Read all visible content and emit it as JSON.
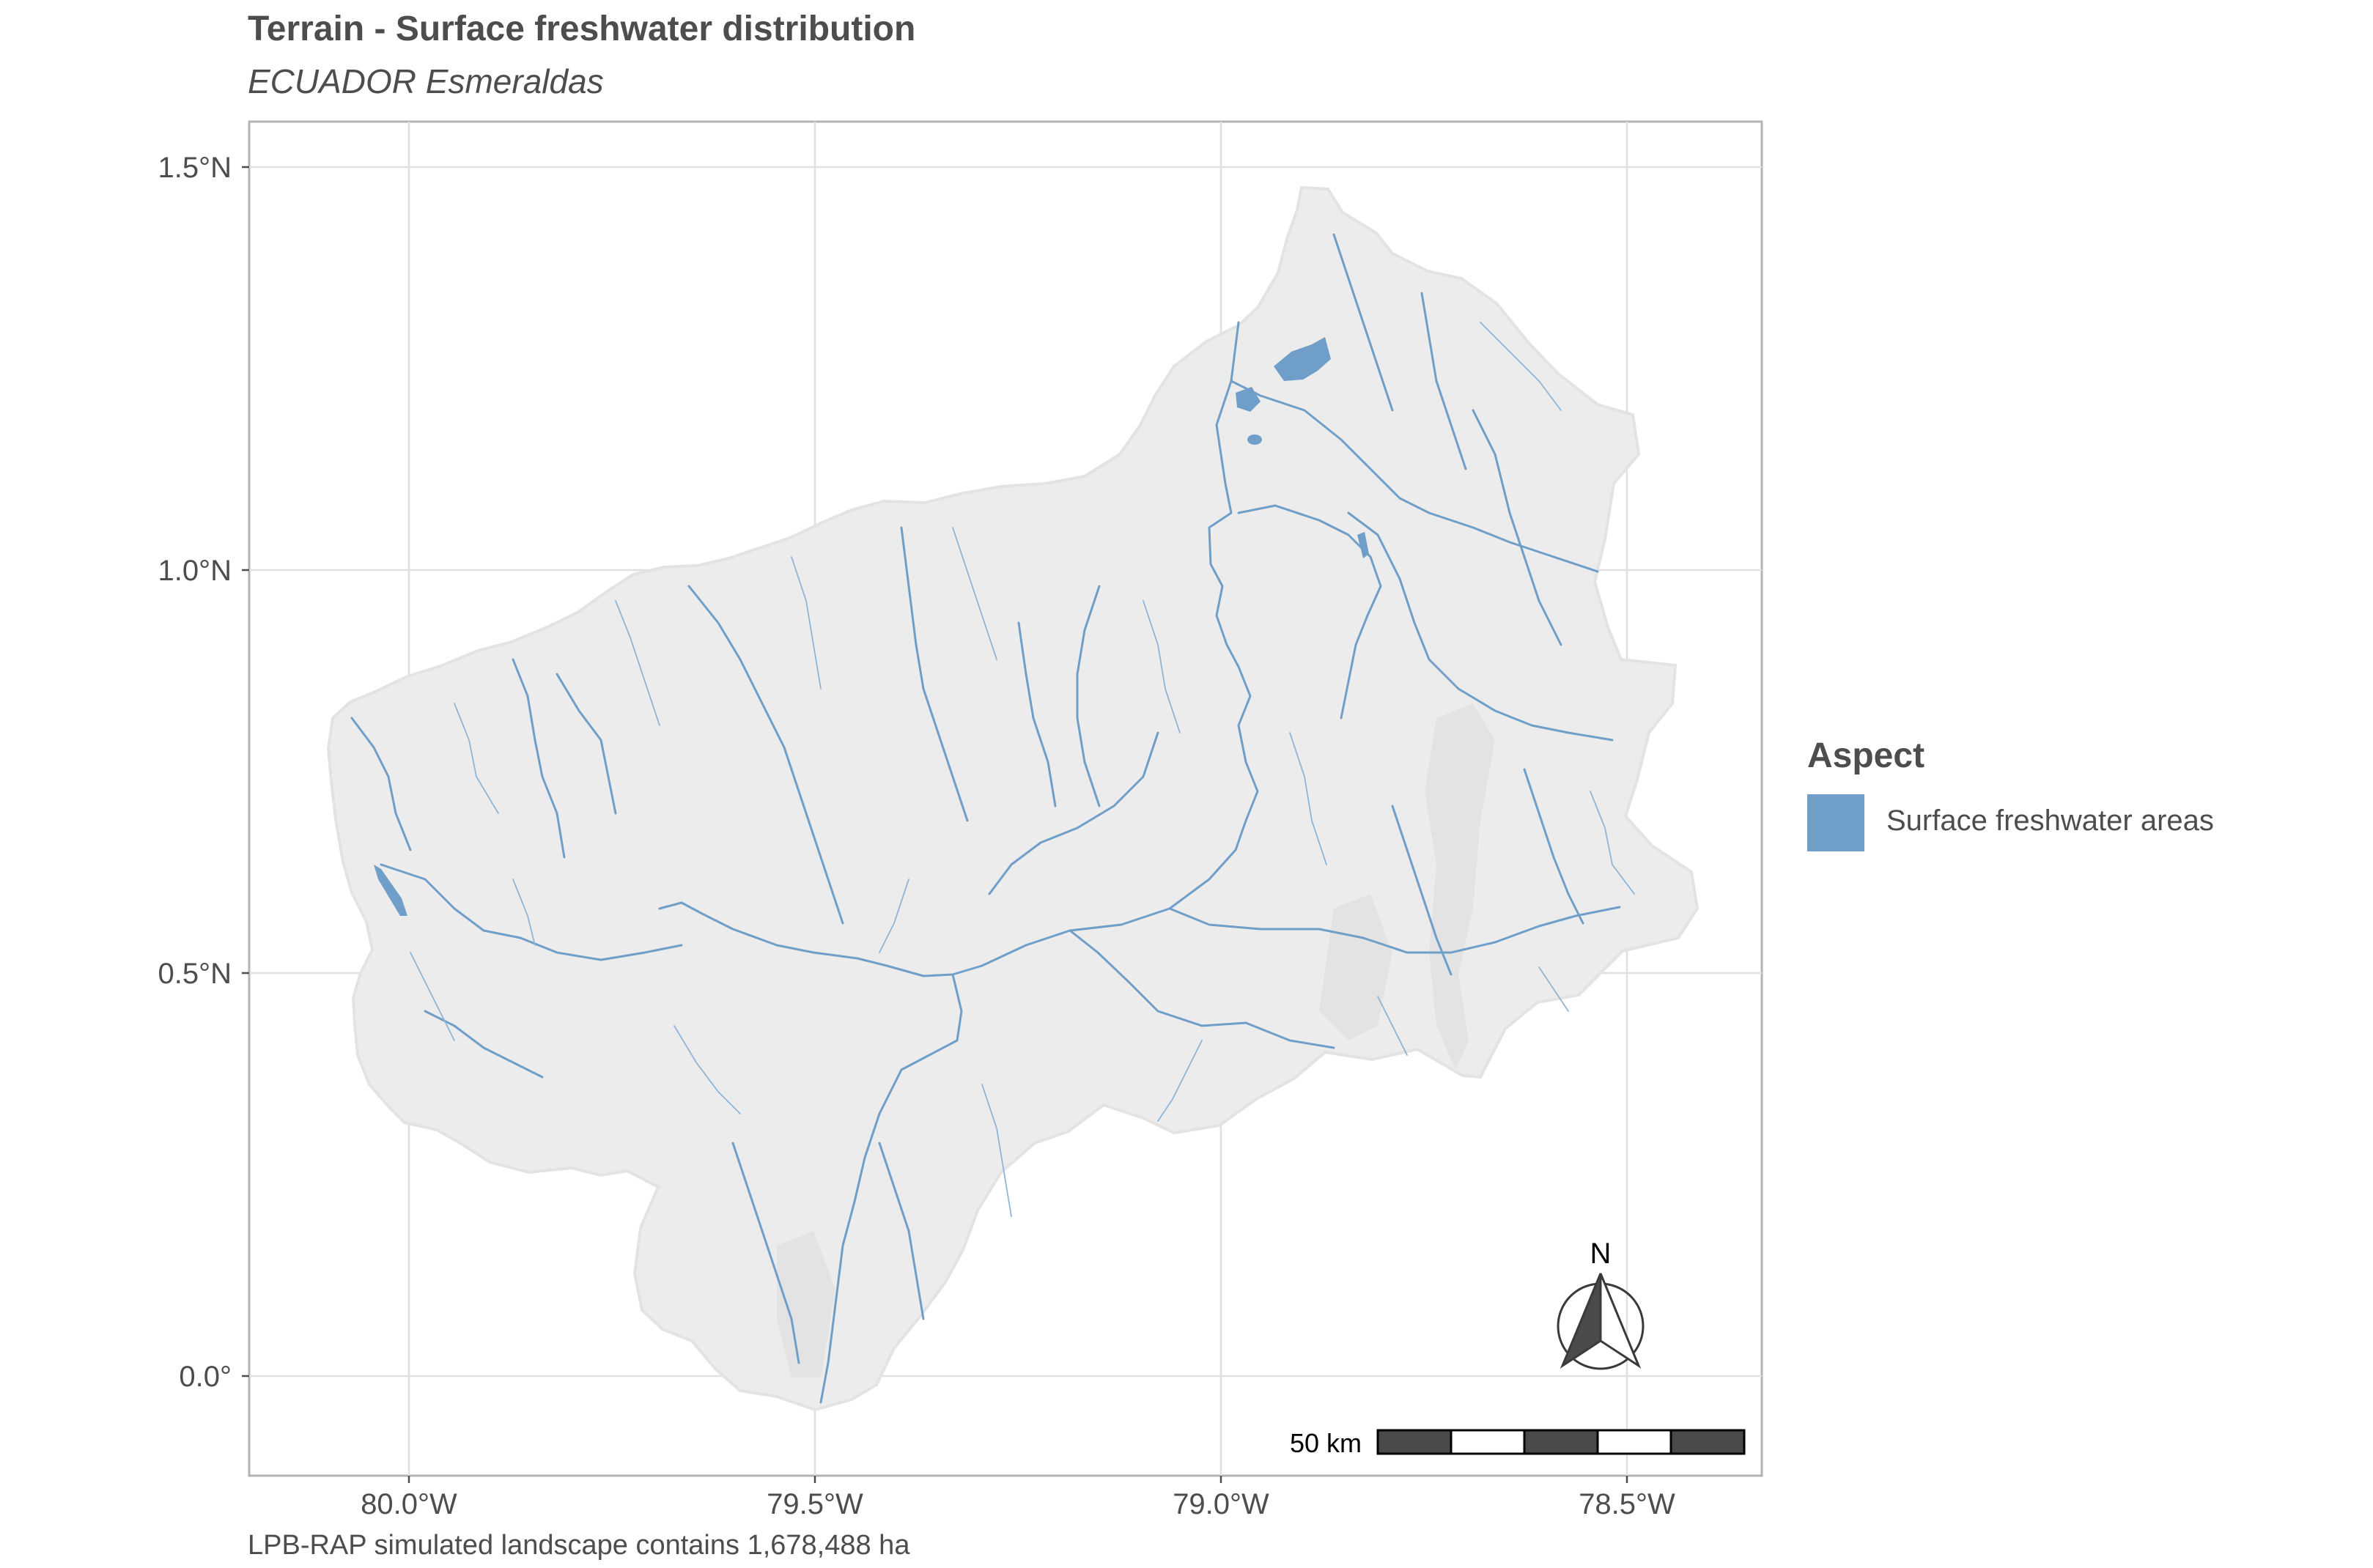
{
  "title": "Terrain - Surface freshwater distribution",
  "subtitle": "ECUADOR Esmeraldas",
  "caption": "LPB-RAP simulated landscape contains 1,678,488 ha",
  "map": {
    "x_ticks": [
      "80.0°W",
      "79.5°W",
      "79.0°W",
      "78.5°W"
    ],
    "y_ticks": [
      "1.5°N",
      "1.0°N",
      "0.5°N",
      "0.0°"
    ],
    "scale_bar_label": "50 km",
    "north_label": "N",
    "colors": {
      "land": "#ececec",
      "water": "#6f9fc8",
      "grid": "#e0e0e0",
      "panel_border": "#b3b3b3"
    }
  },
  "legend": {
    "title": "Aspect",
    "items": [
      {
        "label": "Surface freshwater areas",
        "color": "#6f9fc8"
      }
    ]
  }
}
